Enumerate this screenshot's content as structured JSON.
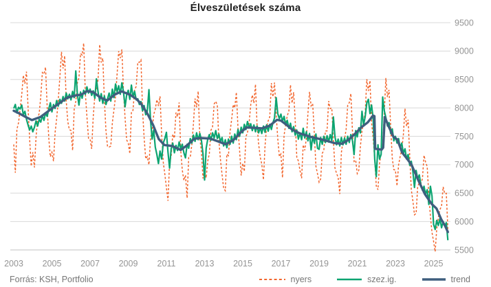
{
  "title": "Élveszületések száma",
  "footer": {
    "source": "Forrás: KSH, Portfolio"
  },
  "legend": {
    "items": [
      {
        "label": "nyers",
        "color": "#f2652c",
        "style": "dashed"
      },
      {
        "label": "szez.ig.",
        "color": "#0ca471",
        "style": "solid"
      },
      {
        "label": "trend",
        "color": "#3f5e7e",
        "style": "solid-thick"
      }
    ]
  },
  "chart_data": {
    "type": "line",
    "title": "Élveszületések száma",
    "grid": "horizontal",
    "x_axis": {
      "ticks": [
        2003,
        2005,
        2007,
        2009,
        2011,
        2013,
        2015,
        2017,
        2019,
        2021,
        2023,
        2025
      ],
      "xlim": [
        2003,
        2025.83
      ]
    },
    "y_axis": {
      "ticks": [
        5500,
        6000,
        6500,
        7000,
        7500,
        8000,
        8500,
        9000,
        9500
      ],
      "ylim": [
        5500,
        9500
      ],
      "side": "right"
    },
    "colors": {
      "grid": "#d8d8d8",
      "axis_line": "#c0c0c0",
      "tick_label": "#949494",
      "title": "#1e1e1e"
    },
    "series_time": {
      "start": 2003.0,
      "step_years": 0.0833333,
      "end": 2025.75,
      "unit": "monthly"
    },
    "series": [
      {
        "name": "nyers",
        "color": "#f2652c",
        "style": "dashed",
        "derivation": {
          "note": "raw monthly births = trend + seasonal profile, amplitude read from chart extremes (peaks ~9280 in 2008, winter dips ~6350 in 2011-13, tail dips ~5500 in 2025)",
          "base": "trend",
          "seasonal": [
            -0.8,
            -1.05,
            -0.35,
            -0.15,
            0.1,
            0.35,
            0.9,
            0.7,
            0.88,
            0.05,
            -0.5,
            -0.8
          ],
          "amplitude_eras": [
            [
              2003,
              900
            ],
            [
              2010,
              800
            ],
            [
              2020,
              780
            ]
          ],
          "jitter": 150,
          "min_clamp": 5470
        }
      },
      {
        "name": "szez.ig.",
        "color": "#0ca471",
        "style": "solid",
        "monthly_values": [
          7990,
          8060,
          7910,
          8010,
          7980,
          8050,
          7880,
          7940,
          7800,
          7700,
          7610,
          7680,
          7580,
          7660,
          7770,
          7680,
          7800,
          7750,
          7870,
          7780,
          7910,
          7850,
          7980,
          8090,
          7930,
          8060,
          7990,
          8130,
          8030,
          8150,
          8080,
          8200,
          8120,
          8260,
          8160,
          8240,
          8140,
          8290,
          8180,
          8650,
          8240,
          8050,
          8280,
          8170,
          8310,
          8240,
          8370,
          8260,
          8330,
          8220,
          8300,
          8170,
          8510,
          8280,
          8120,
          8250,
          8080,
          8210,
          8060,
          8160,
          8260,
          8120,
          8330,
          8180,
          8420,
          8280,
          8390,
          8240,
          8440,
          8280,
          8020,
          8230,
          8310,
          8150,
          8400,
          8190,
          8290,
          8140,
          8160,
          8060,
          8110,
          7950,
          8040,
          7880,
          7940,
          8320,
          7780,
          7450,
          7610,
          7310,
          7180,
          7020,
          7240,
          7100,
          7380,
          7460,
          7570,
          7220,
          6940,
          7280,
          7380,
          7210,
          7340,
          7250,
          7400,
          7280,
          7360,
          7210,
          7120,
          7360,
          7290,
          7460,
          7380,
          7520,
          7410,
          7560,
          7440,
          7550,
          7430,
          7190,
          6730,
          7290,
          7450,
          7530,
          7430,
          7560,
          7470,
          7600,
          7460,
          7540,
          7400,
          7480,
          7330,
          7440,
          7300,
          7450,
          7360,
          7500,
          7380,
          7540,
          7440,
          7620,
          7500,
          7660,
          7560,
          7710,
          7620,
          7760,
          7650,
          7720,
          7600,
          7700,
          7580,
          7680,
          7560,
          7650,
          7550,
          7680,
          7570,
          7700,
          7590,
          7710,
          7620,
          7740,
          7820,
          8180,
          7900,
          7810,
          7890,
          7760,
          7850,
          7700,
          7780,
          7640,
          7730,
          7580,
          7670,
          7520,
          7610,
          7450,
          7560,
          7440,
          7640,
          7470,
          7580,
          7420,
          7550,
          7260,
          7500,
          7380,
          7540,
          7290,
          7270,
          7480,
          7360,
          7500,
          7390,
          7510,
          7400,
          7530,
          7420,
          7840,
          7490,
          7350,
          7450,
          7330,
          7480,
          7350,
          7470,
          7360,
          7500,
          7390,
          7530,
          7420,
          7180,
          7600,
          7490,
          7650,
          7560,
          7940,
          7700,
          7850,
          8090,
          8150,
          7900,
          8050,
          7820,
          7100,
          6790,
          7350,
          7100,
          7180,
          8190,
          7950,
          7830,
          7680,
          7740,
          7550,
          7630,
          7420,
          7500,
          7380,
          7460,
          7300,
          7380,
          7200,
          7280,
          7100,
          7180,
          6990,
          7060,
          6880,
          6600,
          6900,
          6750,
          6820,
          6650,
          6550,
          6620,
          6480,
          6560,
          6300,
          6620,
          6450,
          5950,
          5860,
          6020,
          5930,
          6050,
          5890,
          6000,
          5920,
          5980,
          5670
        ]
      },
      {
        "name": "trend",
        "color": "#3f5e7e",
        "style": "solid-thick",
        "anchor_points": [
          [
            2003.0,
            7950
          ],
          [
            2003.3,
            7900
          ],
          [
            2003.6,
            7845
          ],
          [
            2003.95,
            7785
          ],
          [
            2004.4,
            7840
          ],
          [
            2004.9,
            7965
          ],
          [
            2005.4,
            8085
          ],
          [
            2005.8,
            8180
          ],
          [
            2006.2,
            8215
          ],
          [
            2006.55,
            8235
          ],
          [
            2006.85,
            8295
          ],
          [
            2007.15,
            8280
          ],
          [
            2007.55,
            8180
          ],
          [
            2007.9,
            8130
          ],
          [
            2008.3,
            8235
          ],
          [
            2008.65,
            8290
          ],
          [
            2009.1,
            8230
          ],
          [
            2009.45,
            8150
          ],
          [
            2009.7,
            8060
          ],
          [
            2010.0,
            7900
          ],
          [
            2010.3,
            7700
          ],
          [
            2010.6,
            7450
          ],
          [
            2010.9,
            7345
          ],
          [
            2011.3,
            7330
          ],
          [
            2011.75,
            7260
          ],
          [
            2012.1,
            7345
          ],
          [
            2012.45,
            7455
          ],
          [
            2012.8,
            7470
          ],
          [
            2013.3,
            7460
          ],
          [
            2013.7,
            7410
          ],
          [
            2014.1,
            7360
          ],
          [
            2014.5,
            7430
          ],
          [
            2014.9,
            7570
          ],
          [
            2015.2,
            7655
          ],
          [
            2015.6,
            7650
          ],
          [
            2016.0,
            7640
          ],
          [
            2016.4,
            7685
          ],
          [
            2016.8,
            7790
          ],
          [
            2017.0,
            7775
          ],
          [
            2017.3,
            7700
          ],
          [
            2017.6,
            7615
          ],
          [
            2018.0,
            7550
          ],
          [
            2018.5,
            7495
          ],
          [
            2019.0,
            7455
          ],
          [
            2019.4,
            7420
          ],
          [
            2019.8,
            7380
          ],
          [
            2020.2,
            7370
          ],
          [
            2020.55,
            7440
          ],
          [
            2020.9,
            7550
          ],
          [
            2021.2,
            7655
          ],
          [
            2021.55,
            7745
          ],
          [
            2021.83,
            7865
          ],
          [
            2021.9,
            7855
          ],
          [
            2021.94,
            7280
          ],
          [
            2022.28,
            7265
          ],
          [
            2022.36,
            7300
          ],
          [
            2022.44,
            7840
          ],
          [
            2022.65,
            7670
          ],
          [
            2022.9,
            7490
          ],
          [
            2023.1,
            7445
          ],
          [
            2023.35,
            7215
          ],
          [
            2023.6,
            7110
          ],
          [
            2023.85,
            6995
          ],
          [
            2024.2,
            6725
          ],
          [
            2024.55,
            6480
          ],
          [
            2024.9,
            6310
          ],
          [
            2025.15,
            6230
          ],
          [
            2025.4,
            6040
          ],
          [
            2025.6,
            5925
          ],
          [
            2025.75,
            5815
          ]
        ]
      }
    ]
  }
}
